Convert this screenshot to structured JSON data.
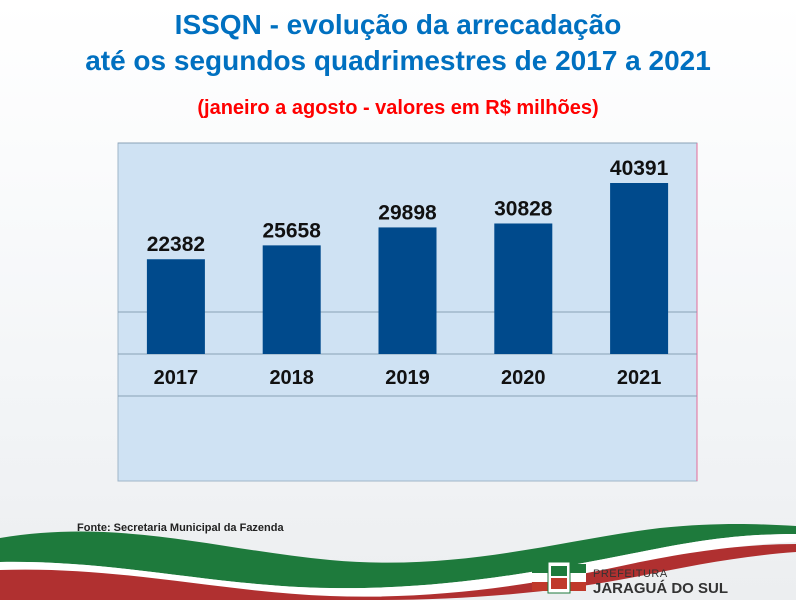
{
  "header": {
    "title_line1": "ISSQN - evolução da arrecadação",
    "title_line2": "até os segundos quadrimestres de 2017 a 2021",
    "subtitle": "(janeiro a agosto - valores em R$ milhões)"
  },
  "chart_data": {
    "type": "bar",
    "categories": [
      "2017",
      "2018",
      "2019",
      "2020",
      "2021"
    ],
    "values": [
      22382,
      25658,
      29898,
      30828,
      40391
    ],
    "title": "",
    "xlabel": "",
    "ylabel": "",
    "grid": true,
    "bar_color": "#004a8c",
    "plot_background": "#cfe2f3"
  },
  "footer": {
    "source": "Fonte: Secretaria Municipal da Fazenda",
    "logo_prefeitura": "PREFEITURA",
    "logo_city": "JARAGUÁ DO SUL"
  },
  "colors": {
    "title": "#0070c0",
    "subtitle": "#ff0000",
    "wave_green": "#1e7a3c",
    "wave_red": "#b03030"
  }
}
